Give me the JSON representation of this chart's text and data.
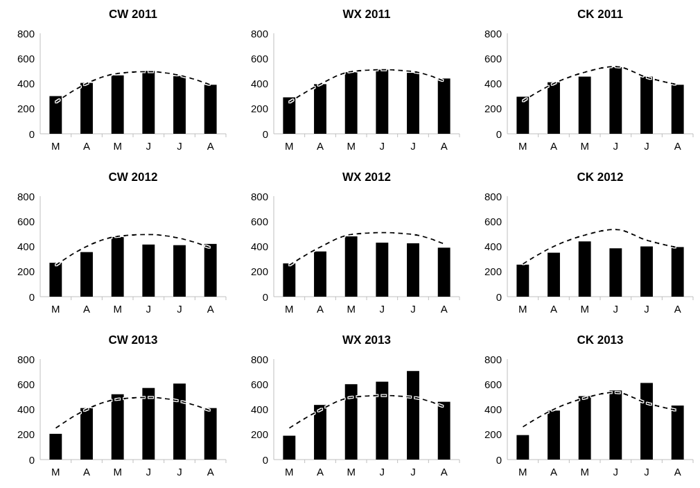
{
  "chart_data": [
    {
      "type": "bar",
      "title": "CW 2011",
      "categories": [
        "M",
        "A",
        "M",
        "J",
        "J",
        "A"
      ],
      "ylim": [
        0,
        800
      ],
      "yticks": [
        0,
        200,
        400,
        600,
        800
      ],
      "legend": false,
      "grid": false,
      "series": [
        {
          "type": "bar",
          "color": "#000000",
          "values": [
            300,
            405,
            465,
            500,
            460,
            390
          ]
        },
        {
          "type": "line",
          "color": "#000000",
          "line_style": "dashed",
          "values": [
            250,
            400,
            480,
            495,
            465,
            390
          ]
        }
      ]
    },
    {
      "type": "bar",
      "title": "WX 2011",
      "categories": [
        "M",
        "A",
        "M",
        "J",
        "J",
        "A"
      ],
      "ylim": [
        0,
        800
      ],
      "yticks": [
        0,
        200,
        400,
        600,
        800
      ],
      "legend": false,
      "grid": false,
      "series": [
        {
          "type": "bar",
          "color": "#000000",
          "values": [
            290,
            395,
            490,
            510,
            485,
            440
          ]
        },
        {
          "type": "line",
          "color": "#000000",
          "line_style": "dashed",
          "values": [
            250,
            395,
            495,
            510,
            495,
            420
          ]
        }
      ]
    },
    {
      "type": "bar",
      "title": "CK 2011",
      "categories": [
        "M",
        "A",
        "M",
        "J",
        "J",
        "A"
      ],
      "ylim": [
        0,
        800
      ],
      "yticks": [
        0,
        200,
        400,
        600,
        800
      ],
      "legend": false,
      "grid": false,
      "series": [
        {
          "type": "bar",
          "color": "#000000",
          "values": [
            295,
            410,
            455,
            530,
            455,
            390
          ]
        },
        {
          "type": "line",
          "color": "#000000",
          "line_style": "dashed",
          "values": [
            260,
            400,
            490,
            535,
            450,
            390
          ]
        }
      ]
    },
    {
      "type": "bar",
      "title": "CW 2012",
      "categories": [
        "M",
        "A",
        "M",
        "J",
        "J",
        "A"
      ],
      "ylim": [
        0,
        800
      ],
      "yticks": [
        0,
        200,
        400,
        600,
        800
      ],
      "legend": false,
      "grid": false,
      "series": [
        {
          "type": "bar",
          "color": "#000000",
          "values": [
            270,
            355,
            475,
            415,
            410,
            420
          ]
        },
        {
          "type": "line",
          "color": "#000000",
          "line_style": "dashed",
          "values": [
            250,
            400,
            480,
            495,
            465,
            390
          ]
        }
      ]
    },
    {
      "type": "bar",
      "title": "WX 2012",
      "categories": [
        "M",
        "A",
        "M",
        "J",
        "J",
        "A"
      ],
      "ylim": [
        0,
        800
      ],
      "yticks": [
        0,
        200,
        400,
        600,
        800
      ],
      "legend": false,
      "grid": false,
      "series": [
        {
          "type": "bar",
          "color": "#000000",
          "values": [
            265,
            360,
            480,
            430,
            425,
            390
          ]
        },
        {
          "type": "line",
          "color": "#000000",
          "line_style": "dashed",
          "values": [
            250,
            395,
            495,
            510,
            495,
            420
          ]
        }
      ]
    },
    {
      "type": "bar",
      "title": "CK 2012",
      "categories": [
        "M",
        "A",
        "M",
        "J",
        "J",
        "A"
      ],
      "ylim": [
        0,
        800
      ],
      "yticks": [
        0,
        200,
        400,
        600,
        800
      ],
      "legend": false,
      "grid": false,
      "series": [
        {
          "type": "bar",
          "color": "#000000",
          "values": [
            255,
            350,
            440,
            385,
            400,
            395
          ]
        },
        {
          "type": "line",
          "color": "#000000",
          "line_style": "dashed",
          "values": [
            260,
            400,
            490,
            535,
            450,
            390
          ]
        }
      ]
    },
    {
      "type": "bar",
      "title": "CW 2013",
      "categories": [
        "M",
        "A",
        "M",
        "J",
        "J",
        "A"
      ],
      "ylim": [
        0,
        800
      ],
      "yticks": [
        0,
        200,
        400,
        600,
        800
      ],
      "legend": false,
      "grid": false,
      "series": [
        {
          "type": "bar",
          "color": "#000000",
          "values": [
            205,
            410,
            520,
            570,
            605,
            410
          ]
        },
        {
          "type": "line",
          "color": "#000000",
          "line_style": "dashed",
          "values": [
            250,
            400,
            480,
            495,
            465,
            390
          ]
        }
      ]
    },
    {
      "type": "bar",
      "title": "WX 2013",
      "categories": [
        "M",
        "A",
        "M",
        "J",
        "J",
        "A"
      ],
      "ylim": [
        0,
        800
      ],
      "yticks": [
        0,
        200,
        400,
        600,
        800
      ],
      "legend": false,
      "grid": false,
      "series": [
        {
          "type": "bar",
          "color": "#000000",
          "values": [
            190,
            435,
            600,
            620,
            705,
            460
          ]
        },
        {
          "type": "line",
          "color": "#000000",
          "line_style": "dashed",
          "values": [
            250,
            395,
            495,
            510,
            495,
            420
          ]
        }
      ]
    },
    {
      "type": "bar",
      "title": "CK 2013",
      "categories": [
        "M",
        "A",
        "M",
        "J",
        "J",
        "A"
      ],
      "ylim": [
        0,
        800
      ],
      "yticks": [
        0,
        200,
        400,
        600,
        800
      ],
      "legend": false,
      "grid": false,
      "series": [
        {
          "type": "bar",
          "color": "#000000",
          "values": [
            195,
            390,
            505,
            550,
            610,
            430
          ]
        },
        {
          "type": "line",
          "color": "#000000",
          "line_style": "dashed",
          "values": [
            260,
            400,
            490,
            535,
            450,
            390
          ]
        }
      ]
    }
  ]
}
